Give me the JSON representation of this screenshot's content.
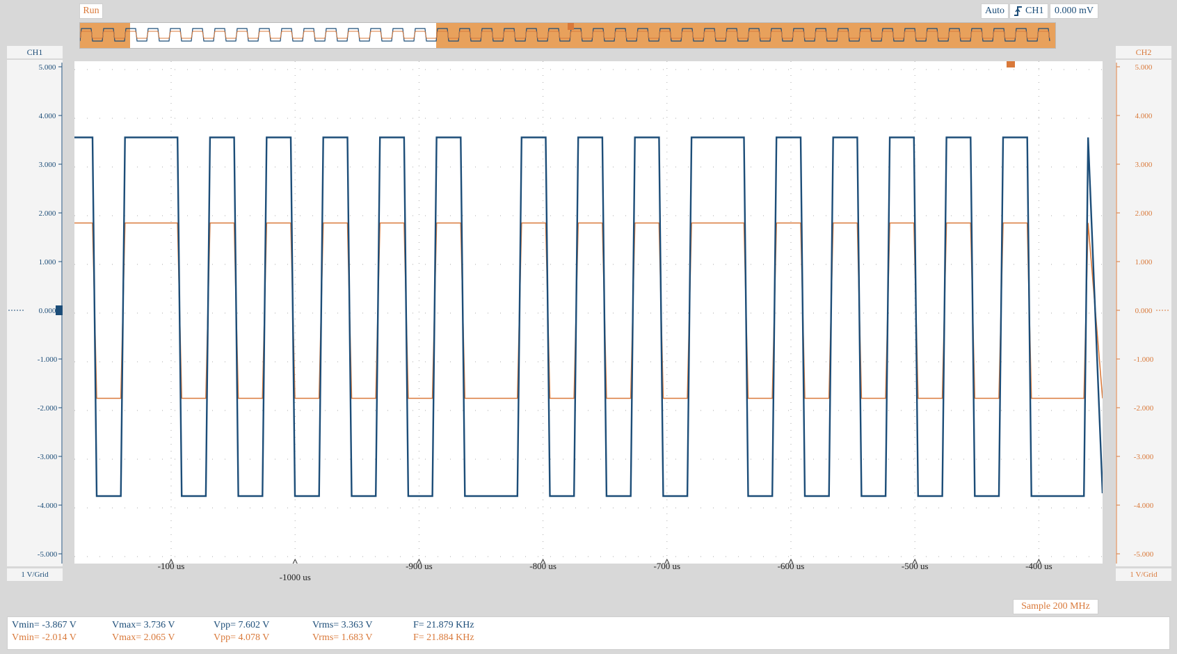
{
  "status": {
    "run": "Run",
    "mode": "Auto",
    "trigger_source": "CH1",
    "trigger_level": "0.000 mV",
    "sample": "Sample 200 MHz"
  },
  "channels": {
    "ch1": {
      "name": "CH1",
      "scale": "1 V/Grid",
      "color": "#1c4d78"
    },
    "ch2": {
      "name": "CH2",
      "scale": "1 V/Grid",
      "color": "#d9793a"
    }
  },
  "y_ticks": [
    "5.000",
    "4.000",
    "3.000",
    "2.000",
    "1.000",
    "0.000",
    "-1.000",
    "-2.000",
    "-3.000",
    "-4.000",
    "-5.000"
  ],
  "x_ticks": [
    {
      "label": "-100 us"
    },
    {
      "label": "-1000 us"
    },
    {
      "label": "-900 us"
    },
    {
      "label": "-800 us"
    },
    {
      "label": "-700 us"
    },
    {
      "label": "-600 us"
    },
    {
      "label": "-500 us"
    },
    {
      "label": "-400 us"
    }
  ],
  "measurements": {
    "ch1": {
      "vmin": "Vmin= -3.867 V",
      "vmax": "Vmax= 3.736 V",
      "vpp": "Vpp= 7.602 V",
      "vrms": "Vrms= 3.363 V",
      "freq": "F= 21.879 KHz"
    },
    "ch2": {
      "vmin": "Vmin= -2.014 V",
      "vmax": "Vmax= 2.065 V",
      "vpp": "Vpp= 4.078 V",
      "vrms": "Vrms= 1.683 V",
      "freq": "F= 21.884 KHz"
    }
  },
  "waveform": {
    "ch1_high": 3.55,
    "ch1_low": -3.7,
    "ch2_high": 1.85,
    "ch2_low": -1.75,
    "period_us": 45.7
  }
}
